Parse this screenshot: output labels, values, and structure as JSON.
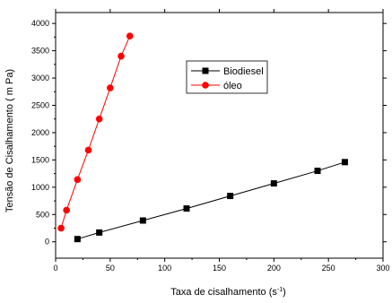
{
  "chart_data": {
    "type": "scatter",
    "title": "",
    "xlabel": "Taxa de cisalhamento",
    "xlabel_unit_base": "(s",
    "xlabel_unit_sup": "-1",
    "xlabel_unit_close": ")",
    "ylabel": "Tensão de Cisalhamento ( m Pa)",
    "xlim": [
      0,
      300
    ],
    "ylim": [
      -300,
      4200
    ],
    "xticks": [
      0,
      50,
      100,
      150,
      200,
      250,
      300
    ],
    "yticks": [
      0,
      500,
      1000,
      1500,
      2000,
      2500,
      3000,
      3500,
      4000
    ],
    "grid": false,
    "legend_position": "upper-right-of-center",
    "series": [
      {
        "name": "Biodiesel",
        "marker": "square",
        "color": "#000000",
        "x": [
          20,
          40,
          80,
          120,
          160,
          200,
          240,
          265
        ],
        "y": [
          50,
          170,
          390,
          610,
          840,
          1070,
          1300,
          1460
        ]
      },
      {
        "name": "óleo",
        "marker": "circle",
        "color": "#ff0000",
        "x": [
          5,
          10,
          20,
          30,
          40,
          50,
          60,
          68
        ],
        "y": [
          250,
          580,
          1140,
          1680,
          2250,
          2820,
          3400,
          3770
        ]
      }
    ]
  }
}
